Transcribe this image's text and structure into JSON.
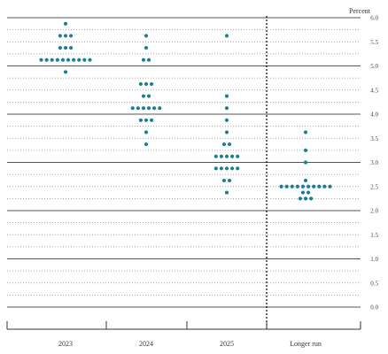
{
  "chart_data": {
    "type": "scatter",
    "title": "",
    "unit_label": "Percent",
    "xlabel": "",
    "ylabel": "",
    "ylim": [
      0,
      6
    ],
    "y_tick_step": 0.25,
    "y_ticks": [
      "0.0",
      "0.5",
      "1.0",
      "1.5",
      "2.0",
      "2.5",
      "3.0",
      "3.5",
      "4.0",
      "4.5",
      "5.0",
      "5.5",
      "6.0"
    ],
    "categories": [
      "2023",
      "2024",
      "2025",
      "Longer run"
    ],
    "grid": true,
    "dot_color": "#1a7f96",
    "line_color": "#333333",
    "dots": [
      {
        "category": "2023",
        "levels": [
          {
            "value": 5.875,
            "count": 1
          },
          {
            "value": 5.625,
            "count": 3
          },
          {
            "value": 5.375,
            "count": 3
          },
          {
            "value": 5.125,
            "count": 10
          },
          {
            "value": 4.875,
            "count": 1
          }
        ]
      },
      {
        "category": "2024",
        "levels": [
          {
            "value": 5.625,
            "count": 1
          },
          {
            "value": 5.375,
            "count": 1
          },
          {
            "value": 5.125,
            "count": 2
          },
          {
            "value": 4.625,
            "count": 3
          },
          {
            "value": 4.375,
            "count": 2
          },
          {
            "value": 4.125,
            "count": 6
          },
          {
            "value": 3.875,
            "count": 3
          },
          {
            "value": 3.625,
            "count": 1
          },
          {
            "value": 3.375,
            "count": 1
          }
        ]
      },
      {
        "category": "2025",
        "levels": [
          {
            "value": 5.625,
            "count": 1
          },
          {
            "value": 4.375,
            "count": 1
          },
          {
            "value": 4.125,
            "count": 1
          },
          {
            "value": 3.875,
            "count": 1
          },
          {
            "value": 3.625,
            "count": 1
          },
          {
            "value": 3.375,
            "count": 2
          },
          {
            "value": 3.125,
            "count": 5
          },
          {
            "value": 2.875,
            "count": 5
          },
          {
            "value": 2.625,
            "count": 2
          },
          {
            "value": 2.375,
            "count": 1
          }
        ]
      },
      {
        "category": "Longer run",
        "levels": [
          {
            "value": 3.625,
            "count": 1
          },
          {
            "value": 3.25,
            "count": 1
          },
          {
            "value": 3.0,
            "count": 1
          },
          {
            "value": 2.625,
            "count": 1
          },
          {
            "value": 2.5,
            "count": 10
          },
          {
            "value": 2.375,
            "count": 2
          },
          {
            "value": 2.25,
            "count": 3
          }
        ]
      }
    ]
  }
}
